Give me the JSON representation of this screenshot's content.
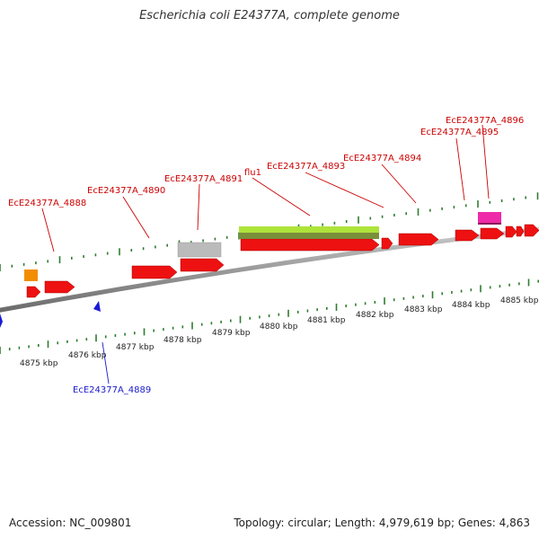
{
  "title": "Escherichia coli E24377A, complete genome",
  "footer": {
    "accession": "Accession: NC_009801",
    "summary": "Topology: circular; Length: 4,979,619 bp; Genes: 4,863"
  },
  "colors": {
    "forward_gene": "#ee1111",
    "reverse_gene": "#1a1ad6",
    "forward_label": "#cc0000",
    "reverse_label": "#1a1acc",
    "tick": "#2f7d2f",
    "backbone": "#888888",
    "rrna": "#f28c00",
    "pseudogene": "#bbbbbb",
    "flu_band_light": "#aee33a",
    "flu_band_dark": "#7a8f3a",
    "magenta_feature": "#ee2aa8"
  },
  "scale_labels": [
    "4875 kbp",
    "4876 kbp",
    "4877 kbp",
    "4878 kbp",
    "4879 kbp",
    "4880 kbp",
    "4881 kbp",
    "4882 kbp",
    "4883 kbp",
    "4884 kbp",
    "4885 kbp"
  ],
  "gene_labels": {
    "g4888": "EcE24377A_4888",
    "g4889": "EcE24377A_4889",
    "g4890": "EcE24377A_4890",
    "g4891": "EcE24377A_4891",
    "flu1": "flu1",
    "g4893": "EcE24377A_4893",
    "g4894": "EcE24377A_4894",
    "g4895": "EcE24377A_4895",
    "g4896": "EcE24377A_4896"
  }
}
